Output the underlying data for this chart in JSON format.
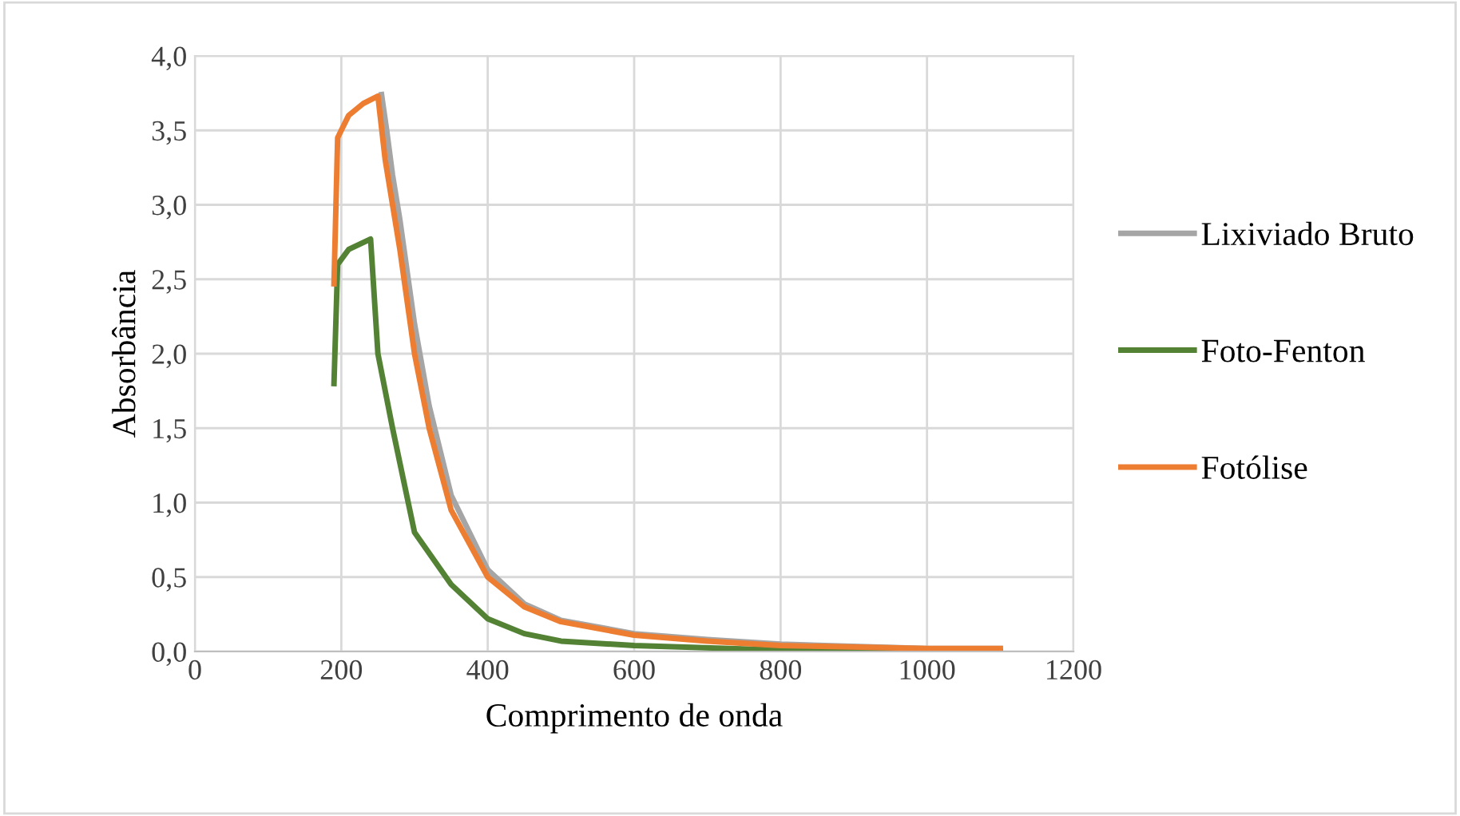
{
  "chart_data": {
    "type": "line",
    "xlabel": "Comprimento de onda",
    "ylabel": "Absorbância",
    "xlim": [
      0,
      1200
    ],
    "xticks": [
      0,
      200,
      400,
      600,
      800,
      1000,
      1200
    ],
    "ylim": [
      0,
      4
    ],
    "yticks": [
      {
        "value": 0,
        "label": "0,0"
      },
      {
        "value": 0.5,
        "label": "0,5"
      },
      {
        "value": 1,
        "label": "1,0"
      },
      {
        "value": 1.5,
        "label": "1,5"
      },
      {
        "value": 2,
        "label": "2,0"
      },
      {
        "value": 2.5,
        "label": "2,5"
      },
      {
        "value": 3,
        "label": "3,0"
      },
      {
        "value": 3.5,
        "label": "3,5"
      },
      {
        "value": 4,
        "label": "4,0"
      }
    ],
    "grid": true,
    "legend": "right",
    "marker": "none",
    "line_style": "solid",
    "series": [
      {
        "name": "Lixiviado Bruto",
        "color": "#a5a5a5",
        "x": [
          255,
          262,
          270,
          280,
          300,
          320,
          350,
          400,
          450,
          500,
          600,
          700,
          800,
          1000,
          1100
        ],
        "values": [
          3.74,
          3.5,
          3.2,
          2.9,
          2.2,
          1.65,
          1.05,
          0.55,
          0.32,
          0.21,
          0.12,
          0.08,
          0.05,
          0.02,
          0.02
        ]
      },
      {
        "name": "Foto-Fenton",
        "color": "#548235",
        "x": [
          190,
          195,
          210,
          240,
          250,
          270,
          300,
          350,
          400,
          450,
          500,
          600,
          800,
          1100
        ],
        "values": [
          1.8,
          2.6,
          2.7,
          2.77,
          2.0,
          1.5,
          0.8,
          0.45,
          0.22,
          0.12,
          0.07,
          0.04,
          0.01,
          0.0
        ]
      },
      {
        "name": "Fotólise",
        "color": "#ed7d31",
        "x": [
          190,
          195,
          210,
          230,
          250,
          260,
          280,
          300,
          320,
          350,
          400,
          450,
          500,
          600,
          700,
          800,
          1000,
          1100
        ],
        "values": [
          2.47,
          3.45,
          3.6,
          3.68,
          3.73,
          3.3,
          2.7,
          2.0,
          1.5,
          0.95,
          0.5,
          0.3,
          0.2,
          0.11,
          0.07,
          0.04,
          0.02,
          0.02
        ]
      }
    ]
  }
}
